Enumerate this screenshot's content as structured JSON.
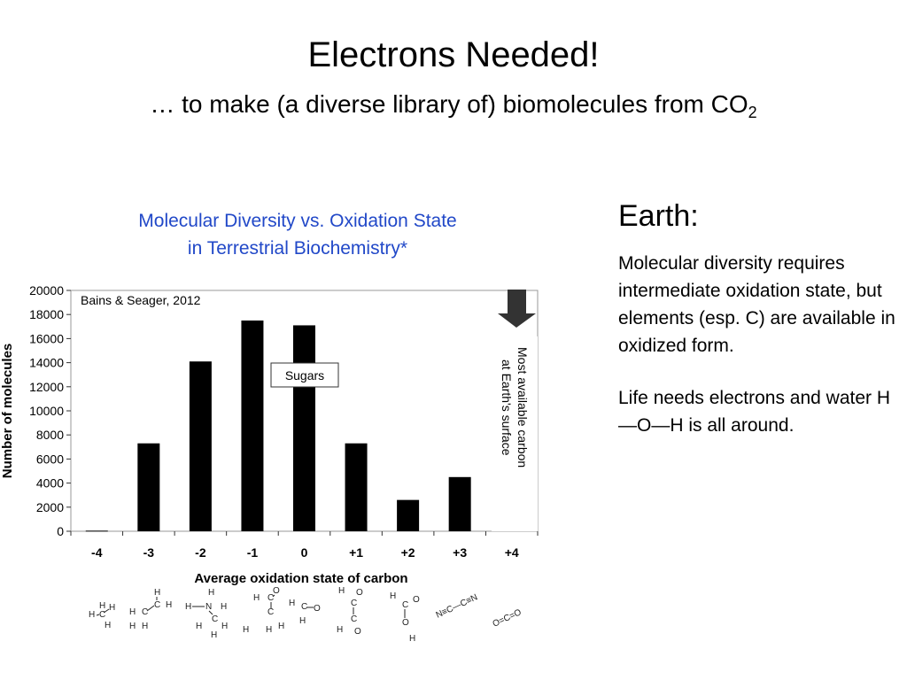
{
  "slide": {
    "title": "Electrons Needed!",
    "subtitle_text": "… to make (a diverse library of) biomolecules from CO",
    "subtitle_subscript": "2",
    "chart_heading_line1": "Molecular Diversity vs. Oxidation State",
    "chart_heading_line2": "in Terrestrial Biochemistry*",
    "right_heading": "Earth:",
    "right_paragraph_1": "Molecular diversity requires intermediate oxidation state, but elements (esp. C) are available in oxidized form.",
    "right_paragraph_2": "Life needs electrons and water H—O—H is all around."
  },
  "colors": {
    "chart_heading": "#2148c8",
    "bars": "#000000",
    "arrow": "#333333"
  },
  "icons": [
    "down-arrow-icon"
  ],
  "chart_data": {
    "type": "bar",
    "categories": [
      "-4",
      "-3",
      "-2",
      "-1",
      "0",
      "+1",
      "+2",
      "+3",
      "+4"
    ],
    "values": [
      50,
      7300,
      14100,
      17500,
      17100,
      7300,
      2600,
      4500,
      400
    ],
    "xlabel": "Average oxidation state of carbon",
    "ylabel": "Number of molecules",
    "ylim": [
      0,
      20000
    ],
    "yticks": [
      0,
      2000,
      4000,
      6000,
      8000,
      10000,
      12000,
      14000,
      16000,
      18000,
      20000
    ],
    "grid": false,
    "annotations": {
      "citation": "Bains & Seager, 2012",
      "sugars_label": "Sugars",
      "arrow_label_line1": "Most available carbon",
      "arrow_label_line2": "at Earth's surface"
    }
  }
}
